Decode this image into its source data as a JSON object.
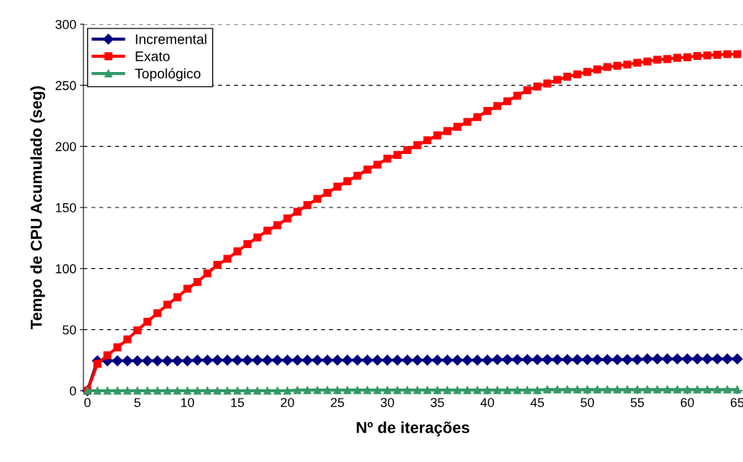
{
  "chart_data": {
    "type": "line",
    "xlabel": "Nº de iterações",
    "ylabel": "Tempo de CPU Acumulado (seg)",
    "x": [
      0,
      1,
      2,
      3,
      4,
      5,
      6,
      7,
      8,
      9,
      10,
      11,
      12,
      13,
      14,
      15,
      16,
      17,
      18,
      19,
      20,
      21,
      22,
      23,
      24,
      25,
      26,
      27,
      28,
      29,
      30,
      31,
      32,
      33,
      34,
      35,
      36,
      37,
      38,
      39,
      40,
      41,
      42,
      43,
      44,
      45,
      46,
      47,
      48,
      49,
      50,
      51,
      52,
      53,
      54,
      55,
      56,
      57,
      58,
      59,
      60,
      61,
      62,
      63,
      64,
      65
    ],
    "series": [
      {
        "name": "Incremental",
        "color": "#000080",
        "marker": "diamond",
        "values": [
          0,
          24.5,
          24.5,
          24.5,
          24.5,
          24.5,
          24.5,
          24.5,
          24.5,
          24.5,
          24.5,
          25,
          25,
          25,
          25,
          25,
          25,
          25,
          25,
          25,
          25,
          25,
          25,
          25,
          25,
          25,
          25,
          25,
          25,
          25,
          25,
          25,
          25,
          25,
          25,
          25,
          25,
          25,
          25,
          25,
          25,
          25.5,
          25.5,
          25.5,
          25.5,
          25.5,
          25.5,
          25.5,
          25.5,
          25.5,
          25.5,
          25.5,
          25.5,
          25.5,
          25.5,
          25.5,
          26,
          26,
          26,
          26,
          26,
          26,
          26,
          26,
          26,
          26
        ]
      },
      {
        "name": "Exato",
        "color": "#ff0000",
        "marker": "square",
        "values": [
          0,
          22,
          29,
          35.5,
          42,
          49.5,
          56.5,
          63.5,
          70.5,
          76.5,
          83.5,
          89,
          96,
          103,
          108,
          114,
          120,
          125.5,
          131,
          135.5,
          141,
          146.5,
          152,
          157,
          162,
          167,
          171.5,
          176,
          181,
          185,
          190,
          193,
          197,
          201,
          205,
          209,
          212.5,
          216,
          220,
          224,
          229,
          233,
          237,
          241.5,
          246,
          249,
          251.5,
          254.5,
          257,
          259,
          261,
          263,
          265,
          266,
          267,
          268.5,
          269.5,
          271,
          271.5,
          272.5,
          273,
          274,
          274.5,
          275,
          275.5,
          275.5
        ]
      },
      {
        "name": "Topológico",
        "color": "#339966",
        "marker": "triangle",
        "values": [
          0,
          0,
          0,
          0,
          0,
          0,
          0,
          0,
          0,
          0,
          0,
          0,
          0,
          0,
          0,
          0,
          0,
          0,
          0,
          0,
          0,
          0.5,
          0.5,
          0.5,
          0.5,
          0.5,
          0.5,
          0.5,
          0.5,
          0.5,
          0.5,
          0.5,
          0.5,
          0.5,
          0.5,
          0.5,
          0.5,
          0.5,
          0.5,
          0.5,
          0.5,
          0.5,
          0.5,
          0.5,
          0.5,
          0.5,
          1,
          1,
          1,
          1,
          1,
          1,
          1,
          1,
          1,
          1,
          1,
          1,
          1,
          1,
          1,
          1,
          1,
          1,
          1,
          1
        ]
      }
    ],
    "xlim": [
      -0.4,
      65.5
    ],
    "xticks": [
      0,
      5,
      10,
      15,
      20,
      25,
      30,
      35,
      40,
      45,
      50,
      55,
      60,
      65
    ],
    "ylim": [
      0,
      300
    ],
    "yticks": [
      0,
      50,
      100,
      150,
      200,
      250,
      300
    ],
    "grid": "y",
    "legend": "top left",
    "line_style": "solid"
  }
}
